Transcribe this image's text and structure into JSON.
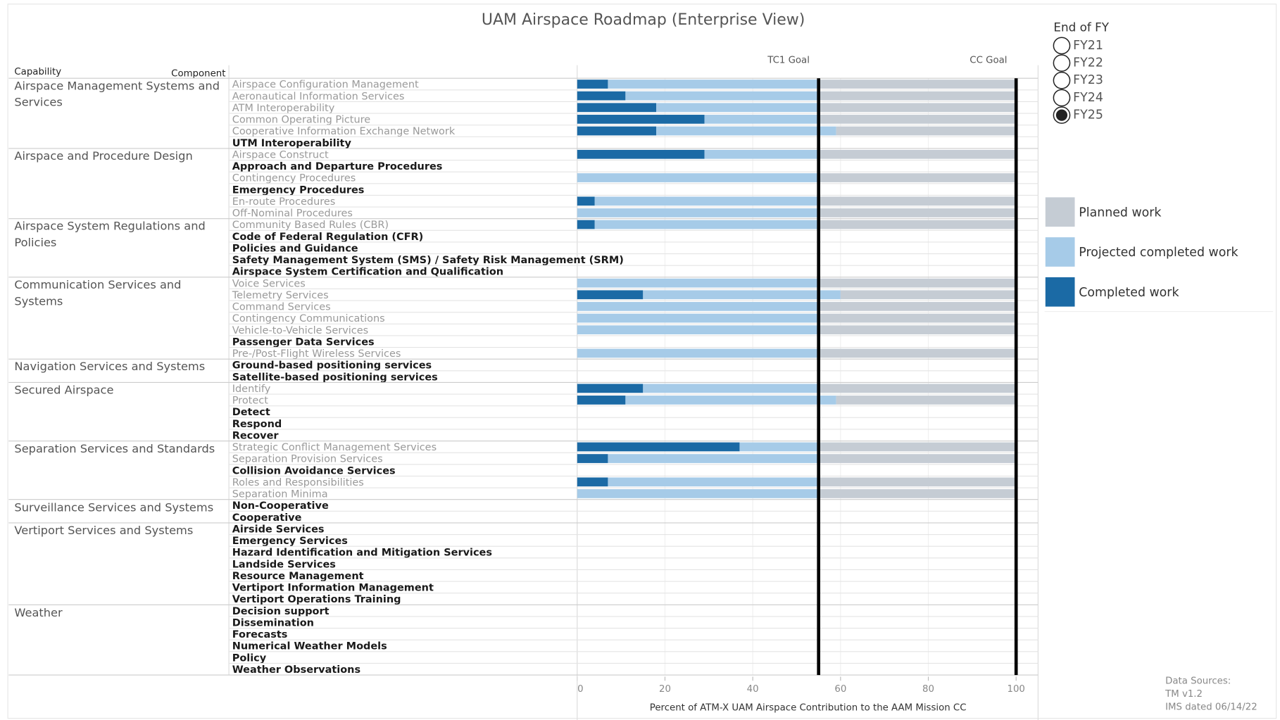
{
  "chart_data": {
    "type": "stacked-bar-h",
    "title": "UAM Airspace Roadmap (Enterprise View)",
    "capability_header": "Capability",
    "component_header": "Component",
    "x_label": "Percent of ATM-X UAM Airspace Contribution to the AAM Mission CC",
    "xlim": [
      0,
      105
    ],
    "xticks": [
      0,
      20,
      40,
      60,
      80,
      100
    ],
    "grid": true,
    "reference_lines": [
      {
        "label": "TC1 Goal",
        "value": 55
      },
      {
        "label": "CC Goal",
        "value": 100
      }
    ],
    "groups": [
      {
        "name": "Airspace Management Systems and Services",
        "components": [
          "Airspace Configuration Management",
          "Aeronautical Information Services",
          "ATM Interoperability",
          "Common Operating Picture",
          "Cooperative Information Exchange Network",
          "UTM Interoperability"
        ]
      },
      {
        "name": "Airspace and Procedure Design",
        "components": [
          "Airspace Construct",
          "Approach and Departure Procedures",
          "Contingency Procedures",
          "Emergency Procedures",
          "En-route Procedures",
          "Off-Nominal Procedures"
        ]
      },
      {
        "name": "Airspace System Regulations and Policies",
        "components": [
          "Community Based Rules (CBR)",
          "Code of Federal Regulation (CFR)",
          "Policies and Guidance",
          "Safety Management System (SMS) / Safety Risk Management (SRM)",
          "Airspace System Certification and Qualification"
        ]
      },
      {
        "name": "Communication Services and Systems",
        "components": [
          "Voice Services",
          "Telemetry Services",
          "Command Services",
          "Contingency Communications",
          "Vehicle-to-Vehicle Services",
          "Passenger Data Services",
          "Pre-/Post-Flight Wireless Services"
        ]
      },
      {
        "name": "Navigation Services and Systems",
        "components": [
          "Ground-based positioning services",
          "Satellite-based positioning services"
        ]
      },
      {
        "name": "Secured Airspace",
        "components": [
          "Identify",
          "Protect",
          "Detect",
          "Respond",
          "Recover"
        ]
      },
      {
        "name": "Separation Services and Standards",
        "components": [
          "Strategic Conflict Management Services",
          "Separation Provision Services",
          "Collision Avoidance Services",
          "Roles and Responsibilities",
          "Separation Minima"
        ]
      },
      {
        "name": "Surveillance Services and Systems",
        "components": [
          "Non-Cooperative",
          "Cooperative"
        ]
      },
      {
        "name": "Vertiport Services and Systems",
        "components": [
          "Airside Services",
          "Emergency Services",
          "Hazard Identification and Mitigation Services",
          "Landside Services",
          "Resource Management",
          "Vertiport Information Management",
          "Vertiport Operations Training"
        ]
      },
      {
        "name": "Weather",
        "components": [
          "Decision support",
          "Dissemination",
          "Forecasts",
          "Numerical Weather Models",
          "Policy",
          "Weather Observations"
        ]
      }
    ],
    "series": [
      {
        "name": "Completed work",
        "color": "#1b6aa5",
        "values": [
          [
            7,
            11,
            18,
            29,
            18,
            null
          ],
          [
            29,
            null,
            0,
            null,
            4,
            0
          ],
          [
            4,
            null,
            null,
            null,
            null
          ],
          [
            0,
            15,
            0,
            0,
            0,
            null,
            0
          ],
          [
            null,
            null
          ],
          [
            15,
            11,
            null,
            null,
            null
          ],
          [
            37,
            7,
            null,
            7,
            0
          ],
          [
            null,
            null
          ],
          [
            null,
            null,
            null,
            null,
            null,
            null,
            null
          ],
          [
            null,
            null,
            null,
            null,
            null,
            null
          ]
        ]
      },
      {
        "name": "Projected completed work",
        "color": "#a6cbe8",
        "values": [
          [
            48,
            44,
            37,
            26,
            41,
            null
          ],
          [
            26,
            null,
            55,
            null,
            51,
            55
          ],
          [
            51,
            null,
            null,
            null,
            null
          ],
          [
            55,
            45,
            55,
            55,
            55,
            null,
            55
          ],
          [
            null,
            null
          ],
          [
            40,
            48,
            null,
            null,
            null
          ],
          [
            18,
            48,
            null,
            48,
            55
          ],
          [
            null,
            null
          ],
          [
            null,
            null,
            null,
            null,
            null,
            null,
            null
          ],
          [
            null,
            null,
            null,
            null,
            null,
            null
          ]
        ]
      },
      {
        "name": "Planned work",
        "color": "#c5ccd4",
        "values": [
          [
            45,
            45,
            45,
            45,
            41,
            null
          ],
          [
            45,
            null,
            45,
            null,
            45,
            45
          ],
          [
            45,
            null,
            null,
            null,
            null
          ],
          [
            45,
            40,
            45,
            45,
            45,
            null,
            45
          ],
          [
            null,
            null
          ],
          [
            45,
            41,
            null,
            null,
            null
          ],
          [
            45,
            45,
            null,
            45,
            45
          ],
          [
            null,
            null
          ],
          [
            null,
            null,
            null,
            null,
            null,
            null,
            null
          ],
          [
            null,
            null,
            null,
            null,
            null,
            null
          ]
        ]
      }
    ],
    "filter": {
      "title": "End of FY",
      "options": [
        "FY21",
        "FY22",
        "FY23",
        "FY24",
        "FY25"
      ],
      "selected": "FY25"
    },
    "sources": [
      "Data Sources:",
      "TM v1.2",
      "IMS dated 06/14/22"
    ]
  }
}
